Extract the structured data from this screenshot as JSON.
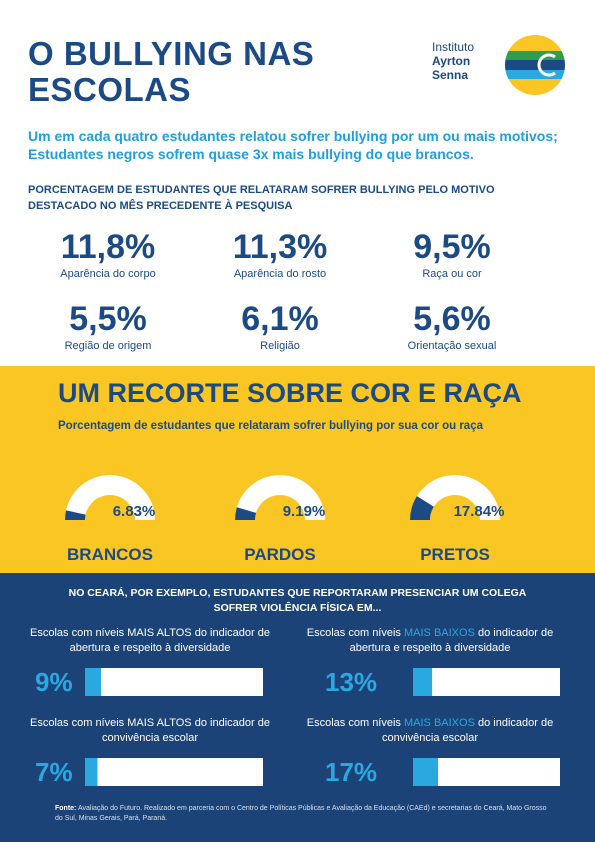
{
  "header": {
    "title": "O BULLYING NAS ESCOLAS",
    "logo": [
      "Instituto",
      "Ayrton",
      "Senna"
    ]
  },
  "subtitle": "Um em cada quatro estudantes relatou sofrer bullying por um ou mais motivos; Estudantes negros sofrem quase 3x mais bullying do que brancos.",
  "stats": {
    "heading": "PORCENTAGEM DE ESTUDANTES QUE RELATARAM SOFRER BULLYING PELO MOTIVO DESTACADO NO MÊS PRECEDENTE À PESQUISA",
    "items": [
      {
        "value": "11,8%",
        "label": "Aparência do corpo"
      },
      {
        "value": "11,3%",
        "label": "Aparência do rosto"
      },
      {
        "value": "9,5%",
        "label": "Raça ou cor"
      },
      {
        "value": "5,5%",
        "label": "Região de origem"
      },
      {
        "value": "6,1%",
        "label": "Religião"
      },
      {
        "value": "5,6%",
        "label": "Orientação sexual"
      }
    ]
  },
  "race": {
    "title": "UM RECORTE SOBRE COR E RAÇA",
    "subtitle": "Porcentagem de estudantes que relataram sofrer bullying por sua cor ou raça",
    "range": [
      0,
      100
    ],
    "categories": [
      "BRANCOS",
      "PARDOS",
      "PRETOS"
    ],
    "values": [
      6.83,
      9.19,
      17.84
    ],
    "value_labels": [
      "6.83%",
      "9.19%",
      "17.84%"
    ]
  },
  "ceara": {
    "heading": "NO CEARÁ, POR EXEMPLO, ESTUDANTES QUE REPORTARAM PRESENCIAR UM COLEGA SOFRER VIOLÊNCIA FÍSICA EM...",
    "range": [
      0,
      100
    ],
    "items": [
      {
        "before": "Escolas com níveis",
        "highlight": "MAIS ALTOS",
        "after": "do indicador de abertura e respeito à diversidade",
        "value": 9,
        "value_label": "9%"
      },
      {
        "before": "Escolas com níveis",
        "highlight": "MAIS BAIXOS",
        "after": "do indicador de abertura e respeito à diversidade",
        "value": 13,
        "value_label": "13%"
      },
      {
        "before": "Escolas com níveis",
        "highlight": "MAIS ALTOS",
        "after": "do indicador de convivência escolar",
        "value": 7,
        "value_label": "7%"
      },
      {
        "before": "Escolas com níveis",
        "highlight": "MAIS BAIXOS",
        "after": "do indicador de convivência escolar",
        "value": 17,
        "value_label": "17%"
      }
    ]
  },
  "footnote": {
    "label": "Fonte:",
    "text": "Avaliação do Futuro. Realizado em parceria com o Centro de Políticas Públicas e Avaliação da Educação (CAEd) e secretarias do Ceará, Mato Grosso do Sul, Minas Gerais, Pará, Paraná."
  }
}
